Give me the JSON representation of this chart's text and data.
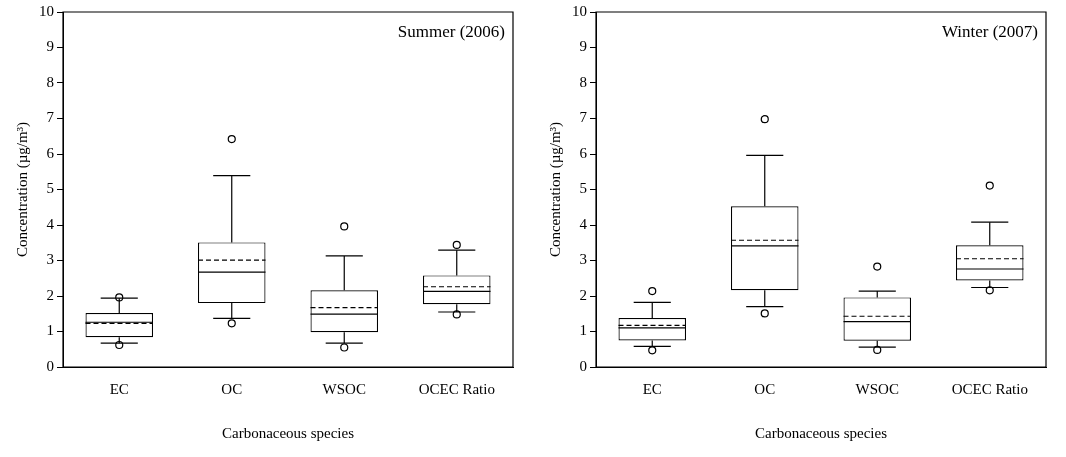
{
  "chart_data": [
    {
      "type": "box",
      "categories": [
        "EC",
        "OC",
        "WSOC",
        "OCEC Ratio"
      ],
      "xlabel": "Carbonaceous species",
      "ylabel": "Concentration (µg/m³)",
      "annotations": [
        "Summer (2006)"
      ],
      "ylim": [
        0,
        10
      ],
      "yticks": [
        0,
        1,
        2,
        3,
        4,
        5,
        6,
        7,
        8,
        9,
        10
      ],
      "grid": false,
      "legend": false,
      "boxes": [
        {
          "low": 0.67,
          "q1": 0.84,
          "median": 1.26,
          "q3": 1.52,
          "high": 1.94,
          "mean": 1.23,
          "outliers": [
            1.96,
            0.62
          ]
        },
        {
          "low": 1.37,
          "q1": 1.8,
          "median": 2.67,
          "q3": 3.51,
          "high": 5.39,
          "mean": 3.01,
          "outliers": [
            6.42,
            1.23
          ]
        },
        {
          "low": 0.67,
          "q1": 0.98,
          "median": 1.49,
          "q3": 2.16,
          "high": 3.13,
          "mean": 1.67,
          "outliers": [
            3.96,
            0.55
          ]
        },
        {
          "low": 1.55,
          "q1": 1.77,
          "median": 2.13,
          "q3": 2.58,
          "high": 3.29,
          "mean": 2.26,
          "outliers": [
            3.44,
            1.48
          ]
        }
      ]
    },
    {
      "type": "box",
      "categories": [
        "EC",
        "OC",
        "WSOC",
        "OCEC Ratio"
      ],
      "xlabel": "Carbonaceous species",
      "ylabel": "Concentration (µg/m³)",
      "annotations": [
        "Winter (2007)"
      ],
      "ylim": [
        0,
        10
      ],
      "yticks": [
        0,
        1,
        2,
        3,
        4,
        5,
        6,
        7,
        8,
        9,
        10
      ],
      "grid": false,
      "legend": false,
      "boxes": [
        {
          "low": 0.58,
          "q1": 0.75,
          "median": 1.1,
          "q3": 1.38,
          "high": 1.82,
          "mean": 1.17,
          "outliers": [
            2.14,
            0.47
          ]
        },
        {
          "low": 1.7,
          "q1": 2.16,
          "median": 3.41,
          "q3": 4.53,
          "high": 5.96,
          "mean": 3.57,
          "outliers": [
            6.98,
            1.51
          ]
        },
        {
          "low": 0.56,
          "q1": 0.74,
          "median": 1.28,
          "q3": 1.96,
          "high": 2.14,
          "mean": 1.43,
          "outliers": [
            2.83,
            0.48
          ]
        },
        {
          "low": 2.24,
          "q1": 2.44,
          "median": 2.76,
          "q3": 3.43,
          "high": 4.08,
          "mean": 3.05,
          "outliers": [
            5.11,
            2.16
          ]
        }
      ]
    }
  ]
}
